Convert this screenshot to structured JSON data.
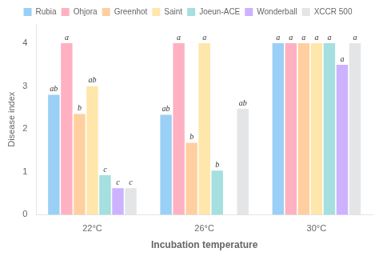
{
  "chart_data": {
    "type": "bar",
    "categories": [
      "22°C",
      "26°C",
      "30°C"
    ],
    "series": [
      {
        "name": "Rubia",
        "values": [
          2.8,
          2.33,
          4.0
        ],
        "labels": [
          "ab",
          "ab",
          "a"
        ]
      },
      {
        "name": "Ohjora",
        "values": [
          4.0,
          4.0,
          4.0
        ],
        "labels": [
          "a",
          "a",
          "a"
        ]
      },
      {
        "name": "Greenhot",
        "values": [
          2.35,
          1.68,
          4.0
        ],
        "labels": [
          "b",
          "b",
          "a"
        ]
      },
      {
        "name": "Saint",
        "values": [
          3.0,
          4.0,
          4.0
        ],
        "labels": [
          "ab",
          "a",
          "a"
        ]
      },
      {
        "name": "Joeun-ACE",
        "values": [
          0.92,
          1.03,
          4.0
        ],
        "labels": [
          "c",
          "b",
          "a"
        ]
      },
      {
        "name": "Wonderball",
        "values": [
          0.62,
          0.0,
          3.5
        ],
        "labels": [
          "c",
          null,
          "a"
        ]
      },
      {
        "name": "XCCR 500",
        "values": [
          0.62,
          2.47,
          4.0
        ],
        "labels": [
          "c",
          "ab",
          "a"
        ]
      }
    ],
    "xlabel": "Incubation temperature",
    "ylabel": "Disease index",
    "ylim": [
      0,
      4.45
    ],
    "yticks": [
      0,
      1,
      2,
      3,
      4
    ],
    "grid": false,
    "legend": "top"
  }
}
